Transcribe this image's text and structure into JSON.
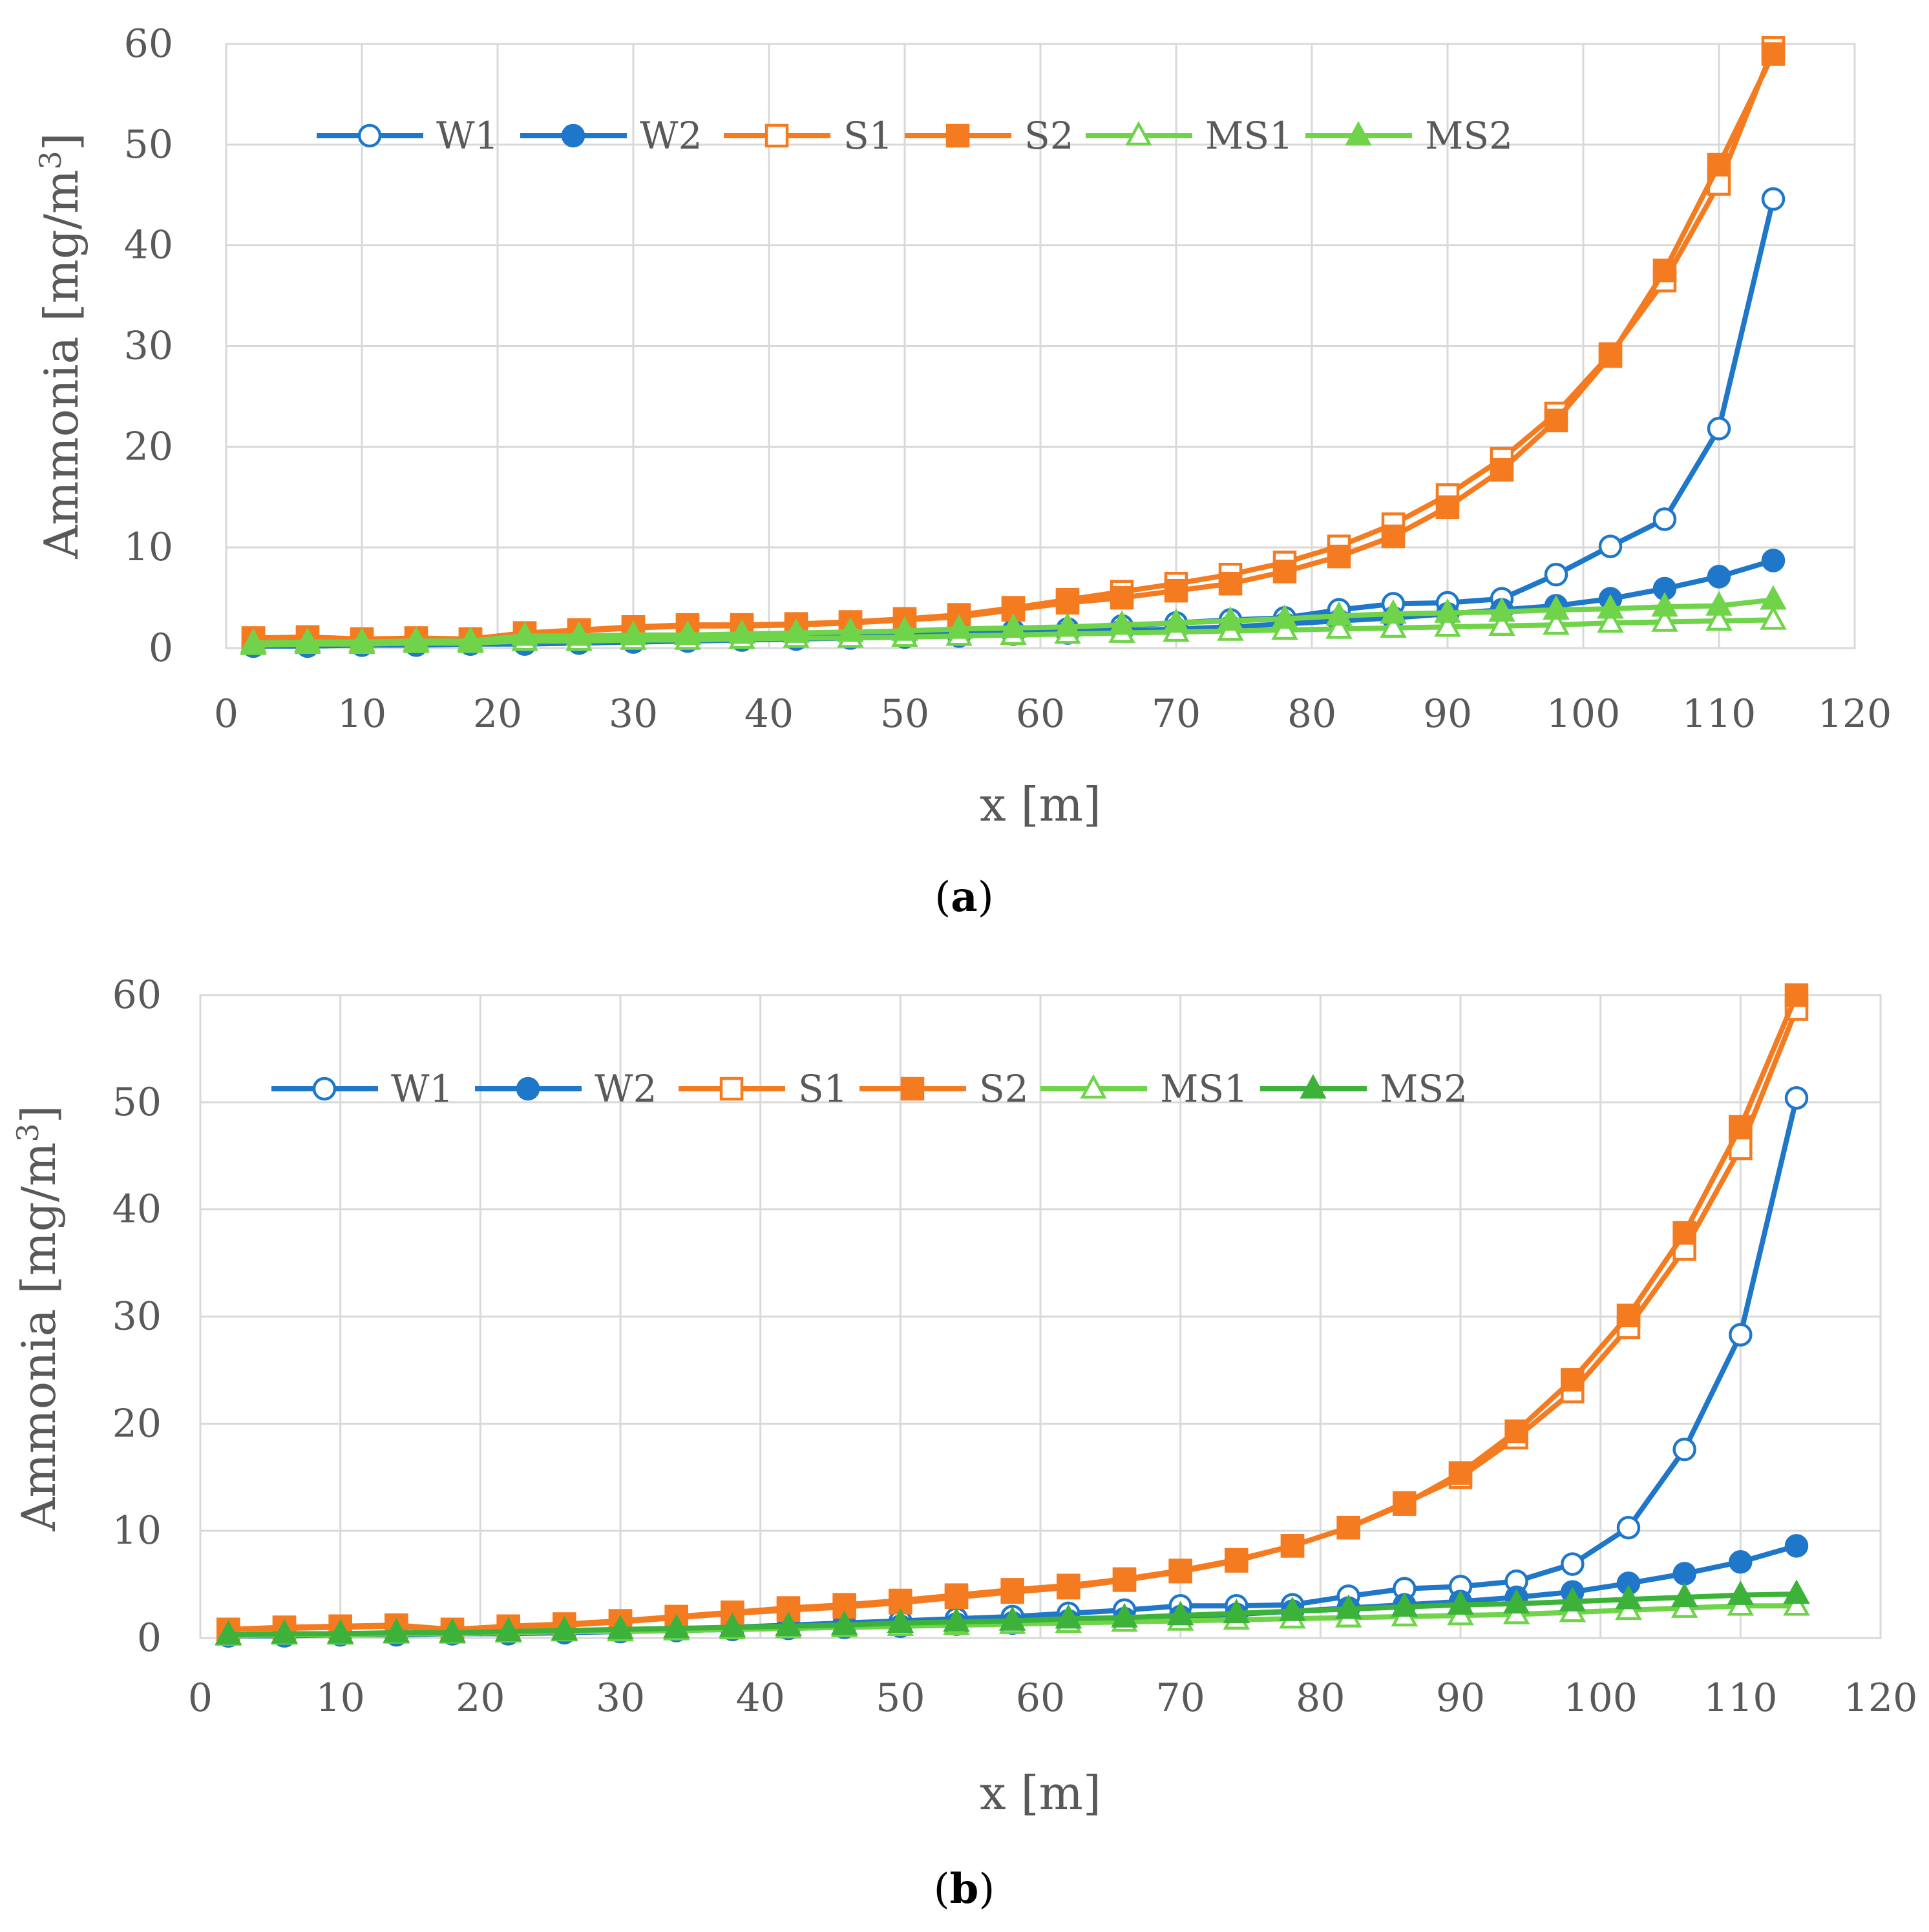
{
  "chart_data": [
    {
      "type": "line",
      "panel_label": "a",
      "xlabel": "x [m]",
      "ylabel": "Ammonia  [mg/m",
      "ylabel_superscript": "3",
      "ylabel_close": "]",
      "xlim": [
        0,
        120
      ],
      "ylim": [
        0,
        60
      ],
      "xticks": [
        "0",
        "10",
        "20",
        "30",
        "40",
        "50",
        "60",
        "70",
        "80",
        "90",
        "100",
        "110",
        "120"
      ],
      "yticks": [
        "0",
        "10",
        "20",
        "30",
        "40",
        "50",
        "60"
      ],
      "grid": true,
      "legend_position": "top",
      "x": [
        2,
        6,
        10,
        14,
        18,
        22,
        26,
        30,
        34,
        38,
        42,
        46,
        50,
        54,
        58,
        62,
        66,
        70,
        74,
        78,
        82,
        86,
        90,
        94,
        98,
        102,
        106,
        110,
        114
      ],
      "series": [
        {
          "name": "W1",
          "color": "#1f77c9",
          "marker": "circle",
          "filled": false,
          "values": [
            0.2,
            0.3,
            0.3,
            0.4,
            0.4,
            0.5,
            0.6,
            0.7,
            0.8,
            1.0,
            1.1,
            1.2,
            1.3,
            1.5,
            1.7,
            1.9,
            2.2,
            2.5,
            2.8,
            3.0,
            3.8,
            4.4,
            4.5,
            4.9,
            7.3,
            10.1,
            12.8,
            21.8,
            44.6
          ]
        },
        {
          "name": "W2",
          "color": "#1f77c9",
          "marker": "circle",
          "filled": true,
          "values": [
            0.2,
            0.2,
            0.3,
            0.3,
            0.4,
            0.4,
            0.5,
            0.6,
            0.7,
            0.8,
            0.9,
            1.0,
            1.1,
            1.2,
            1.4,
            1.5,
            1.7,
            1.9,
            2.1,
            2.4,
            2.7,
            3.0,
            3.4,
            3.8,
            4.2,
            4.9,
            5.9,
            7.1,
            8.7
          ]
        },
        {
          "name": "S1",
          "color": "#f47b20",
          "marker": "square",
          "filled": false,
          "values": [
            1.0,
            1.1,
            0.9,
            1.0,
            0.9,
            1.5,
            1.8,
            2.1,
            2.3,
            2.3,
            2.4,
            2.6,
            2.9,
            3.3,
            4.0,
            4.8,
            5.6,
            6.4,
            7.3,
            8.5,
            10.1,
            12.3,
            15.2,
            18.8,
            23.3,
            29.2,
            36.5,
            46.1,
            59.6
          ]
        },
        {
          "name": "S2",
          "color": "#f47b20",
          "marker": "square",
          "filled": true,
          "values": [
            0.9,
            1.0,
            0.8,
            0.9,
            0.8,
            1.4,
            1.7,
            2.0,
            2.2,
            2.2,
            2.3,
            2.5,
            2.8,
            3.1,
            3.8,
            4.5,
            5.0,
            5.7,
            6.4,
            7.6,
            9.1,
            11.1,
            14.0,
            17.7,
            22.6,
            29.0,
            37.5,
            48.0,
            59.0
          ]
        },
        {
          "name": "MS1",
          "color": "#70d44b",
          "marker": "triangle",
          "filled": false,
          "values": [
            0.3,
            0.4,
            0.4,
            0.5,
            0.5,
            0.7,
            0.7,
            0.8,
            0.8,
            0.9,
            1.0,
            1.0,
            1.1,
            1.2,
            1.3,
            1.4,
            1.5,
            1.6,
            1.7,
            1.8,
            1.9,
            2.0,
            2.1,
            2.2,
            2.3,
            2.5,
            2.6,
            2.7,
            2.8
          ]
        },
        {
          "name": "MS2",
          "color": "#70d44b",
          "marker": "triangle",
          "filled": true,
          "values": [
            0.5,
            0.6,
            0.6,
            0.7,
            0.7,
            1.2,
            1.2,
            1.3,
            1.3,
            1.4,
            1.5,
            1.6,
            1.7,
            1.9,
            2.0,
            2.1,
            2.3,
            2.5,
            2.7,
            2.9,
            3.2,
            3.4,
            3.5,
            3.6,
            3.8,
            3.9,
            4.1,
            4.2,
            4.8
          ]
        }
      ]
    },
    {
      "type": "line",
      "panel_label": "b",
      "xlabel": "x [m]",
      "ylabel": "Ammonia [mg/m",
      "ylabel_superscript": "3",
      "ylabel_close": "]",
      "xlim": [
        0,
        120
      ],
      "ylim": [
        0,
        60
      ],
      "xticks": [
        "0",
        "10",
        "20",
        "30",
        "40",
        "50",
        "60",
        "70",
        "80",
        "90",
        "100",
        "110",
        "120"
      ],
      "yticks": [
        "0",
        "10",
        "20",
        "30",
        "40",
        "50",
        "60"
      ],
      "grid": true,
      "legend_position": "top",
      "x": [
        2,
        6,
        10,
        14,
        18,
        22,
        26,
        30,
        34,
        38,
        42,
        46,
        50,
        54,
        58,
        62,
        66,
        70,
        74,
        78,
        82,
        86,
        90,
        94,
        98,
        102,
        106,
        110,
        114
      ],
      "series": [
        {
          "name": "W1",
          "color": "#1f77c9",
          "marker": "circle",
          "filled": false,
          "values": [
            0.2,
            0.3,
            0.3,
            0.4,
            0.4,
            0.5,
            0.6,
            0.7,
            0.8,
            1.0,
            1.2,
            1.4,
            1.6,
            1.8,
            2.0,
            2.3,
            2.6,
            3.0,
            3.0,
            3.1,
            3.9,
            4.6,
            4.8,
            5.3,
            6.9,
            10.3,
            17.6,
            28.3,
            50.4
          ]
        },
        {
          "name": "W2",
          "color": "#1f77c9",
          "marker": "circle",
          "filled": true,
          "values": [
            0.2,
            0.2,
            0.3,
            0.3,
            0.4,
            0.4,
            0.5,
            0.6,
            0.7,
            0.8,
            0.9,
            1.0,
            1.1,
            1.3,
            1.4,
            1.6,
            1.8,
            2.0,
            2.2,
            2.5,
            2.8,
            3.1,
            3.4,
            3.8,
            4.3,
            5.1,
            6.0,
            7.1,
            8.6
          ]
        },
        {
          "name": "S1",
          "color": "#f47b20",
          "marker": "square",
          "filled": false,
          "values": [
            0.8,
            1.0,
            1.1,
            1.2,
            0.8,
            1.1,
            1.3,
            1.6,
            2.0,
            2.4,
            2.8,
            3.1,
            3.5,
            4.0,
            4.5,
            4.9,
            5.5,
            6.3,
            7.3,
            8.6,
            10.3,
            12.6,
            15.0,
            18.7,
            23.0,
            29.0,
            36.3,
            45.7,
            58.7
          ]
        },
        {
          "name": "S2",
          "color": "#f47b20",
          "marker": "square",
          "filled": true,
          "values": [
            0.8,
            0.9,
            1.0,
            1.1,
            0.7,
            1.0,
            1.2,
            1.5,
            1.9,
            2.3,
            2.6,
            2.9,
            3.3,
            3.8,
            4.3,
            4.7,
            5.4,
            6.2,
            7.2,
            8.6,
            10.3,
            12.5,
            15.4,
            19.3,
            24.1,
            30.1,
            37.8,
            47.7,
            60.0
          ]
        },
        {
          "name": "MS1",
          "color": "#70d44b",
          "marker": "triangle",
          "filled": false,
          "values": [
            0.2,
            0.3,
            0.3,
            0.4,
            0.4,
            0.5,
            0.6,
            0.6,
            0.7,
            0.8,
            0.9,
            1.0,
            1.1,
            1.2,
            1.3,
            1.4,
            1.5,
            1.6,
            1.7,
            1.8,
            1.9,
            2.0,
            2.1,
            2.2,
            2.4,
            2.6,
            2.8,
            3.0,
            3.0
          ]
        },
        {
          "name": "MS2",
          "color": "#3db23a",
          "marker": "triangle",
          "filled": true,
          "values": [
            0.3,
            0.4,
            0.4,
            0.5,
            0.5,
            0.6,
            0.7,
            0.8,
            0.9,
            1.0,
            1.1,
            1.2,
            1.4,
            1.5,
            1.6,
            1.8,
            1.9,
            2.1,
            2.3,
            2.5,
            2.7,
            2.9,
            3.1,
            3.2,
            3.4,
            3.6,
            3.8,
            4.0,
            4.1
          ]
        }
      ]
    }
  ]
}
